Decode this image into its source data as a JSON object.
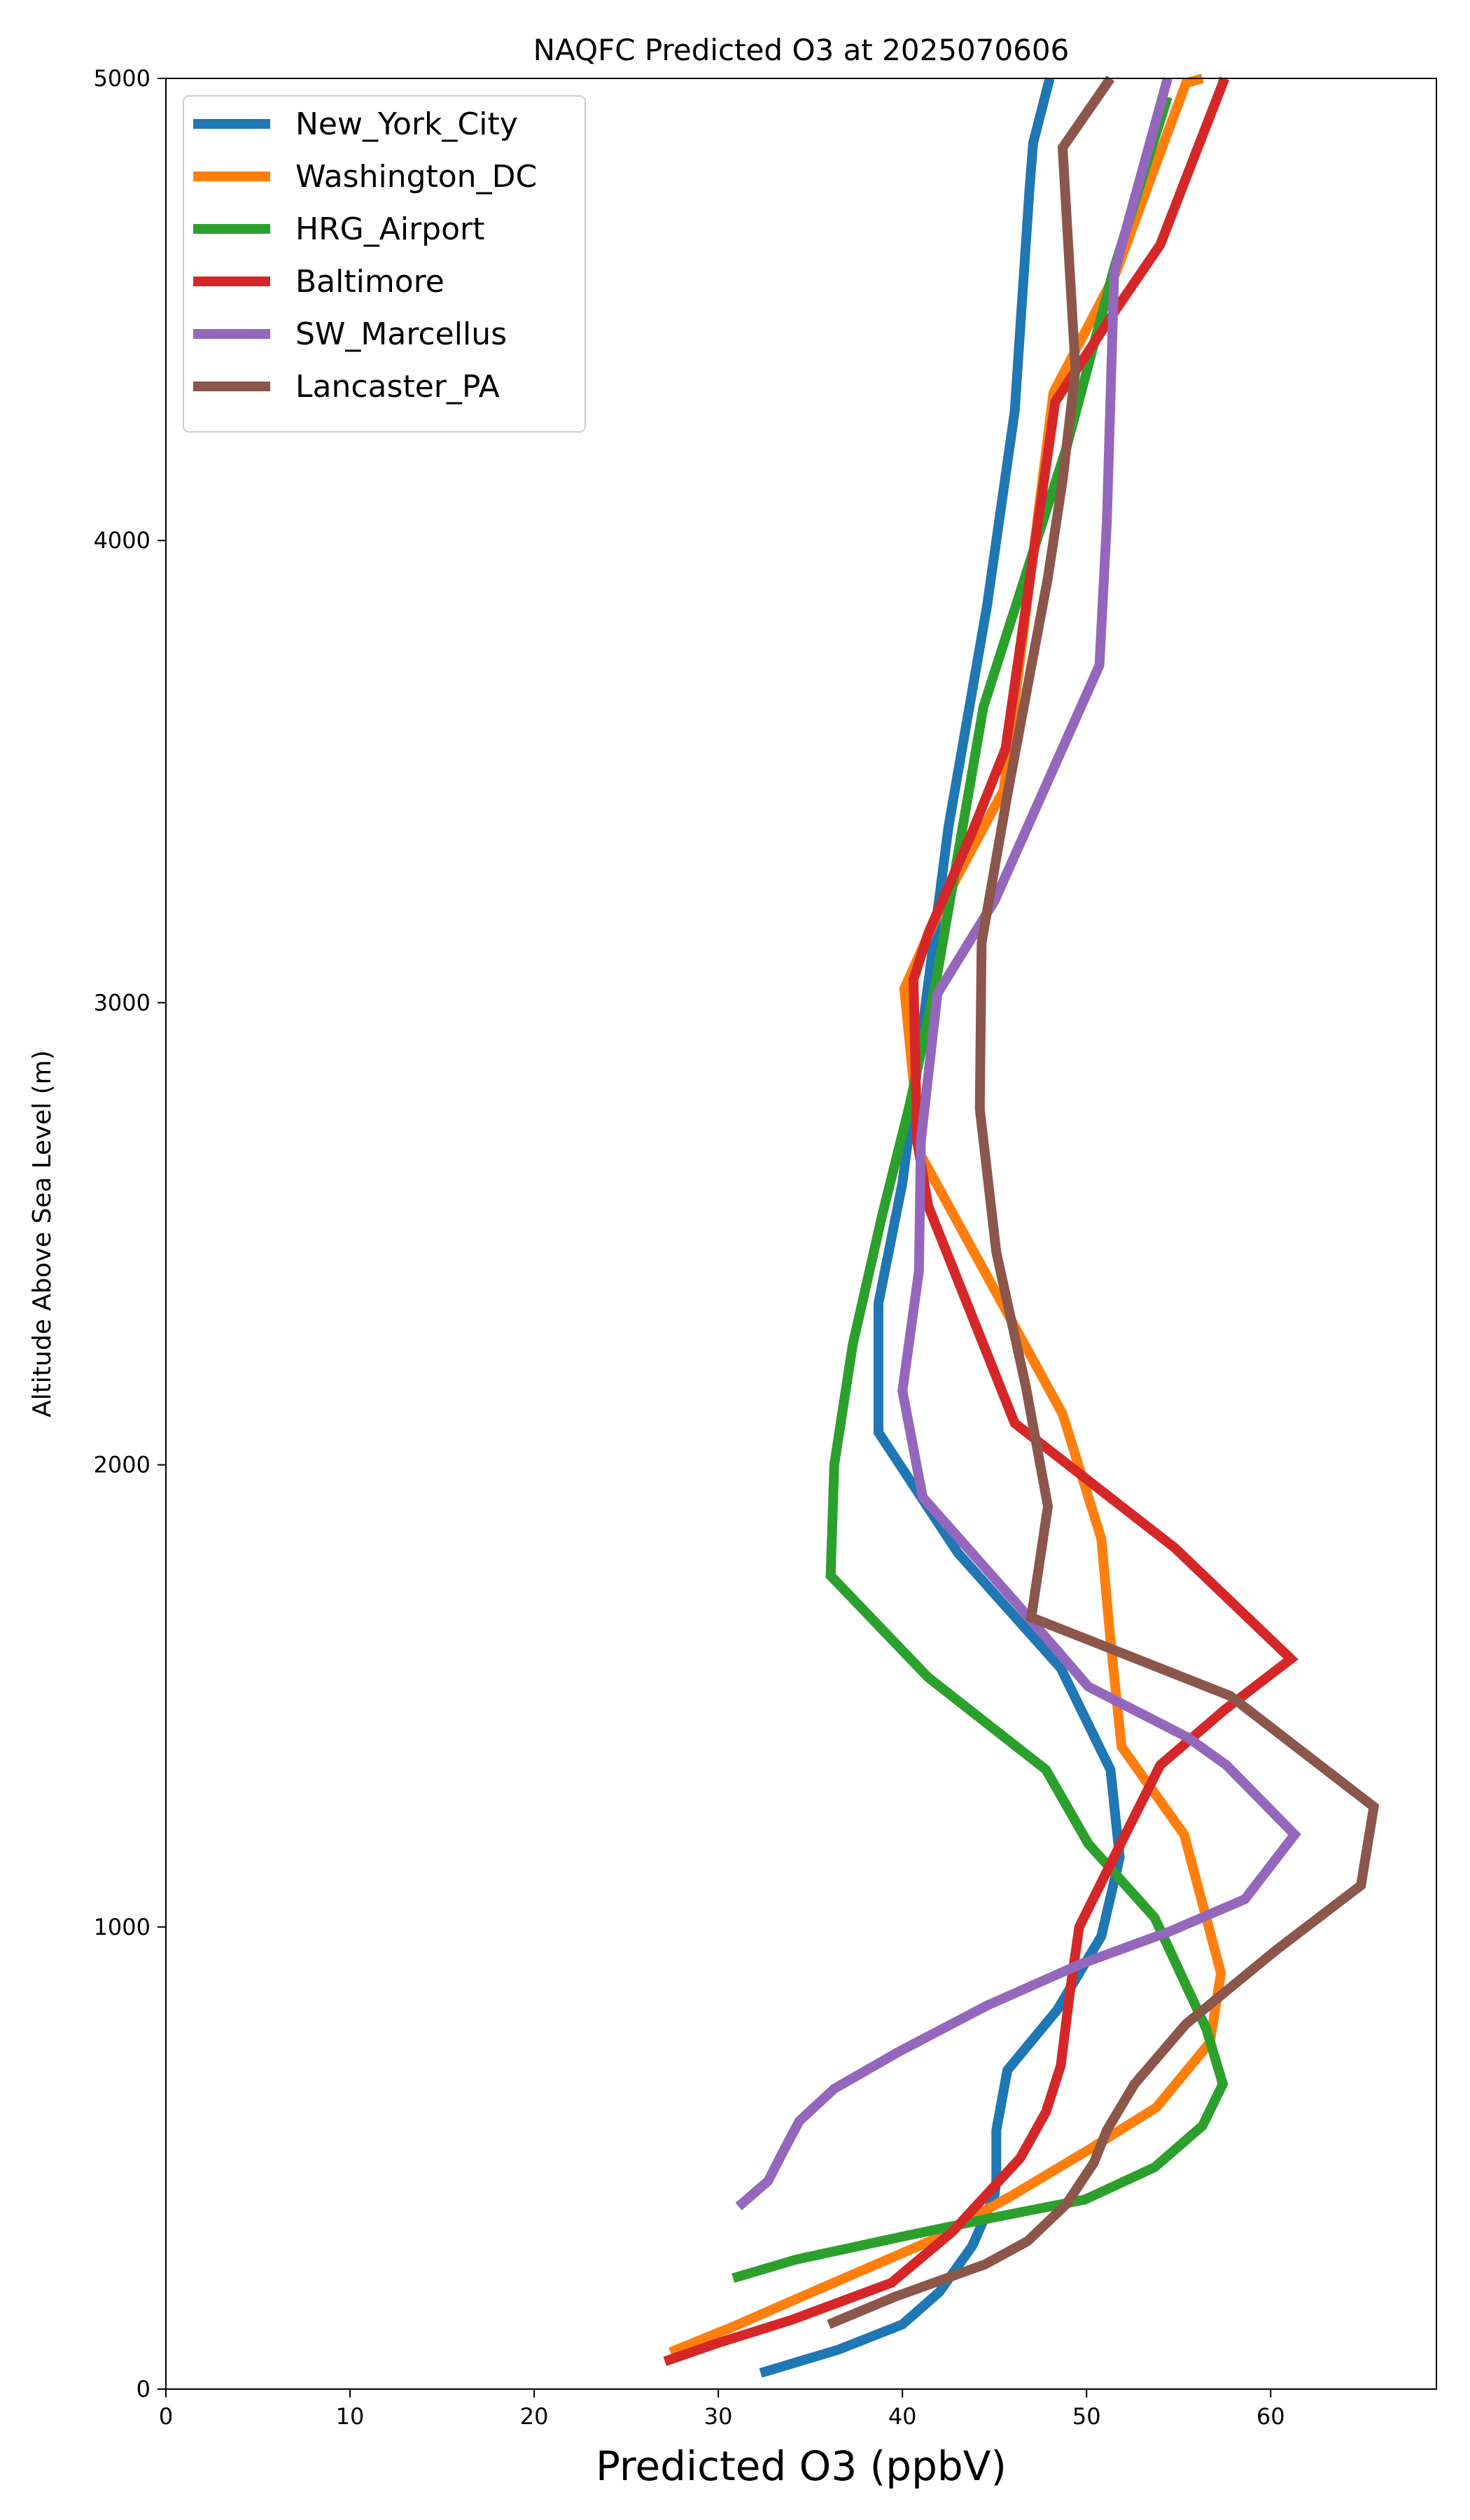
{
  "chart_data": {
    "type": "line",
    "title": "NAQFC Predicted O3 at 2025070606",
    "xlabel": "Predicted O3 (ppbV)",
    "ylabel": "Altitude Above Sea Level (m)",
    "xlim": [
      0,
      69
    ],
    "ylim": [
      0,
      5000
    ],
    "xticks": [
      0,
      10,
      20,
      30,
      40,
      50,
      60
    ],
    "yticks": [
      0,
      1000,
      2000,
      3000,
      4000,
      5000
    ],
    "grid": false,
    "legend": "top-left",
    "series": [
      {
        "name": "New_York_City",
        "color": "#1f77b4",
        "x": [
          32.3,
          36.5,
          40.0,
          42.0,
          43.8,
          45.0,
          45.1,
          45.1,
          45.7,
          48.4,
          50.8,
          51.8,
          51.3,
          48.6,
          43.0,
          38.7,
          38.7,
          40.0,
          42.5,
          44.6,
          46.1,
          46.9,
          47.1,
          48.0
        ],
        "y": [
          35,
          85,
          140,
          210,
          310,
          420,
          450,
          560,
          690,
          820,
          980,
          1150,
          1340,
          1560,
          1810,
          2070,
          2350,
          2610,
          3380,
          3860,
          4280,
          4760,
          4860,
          5000
        ]
      },
      {
        "name": "Washington_DC",
        "color": "#ff7f0e",
        "x": [
          27.4,
          30.8,
          35.1,
          38.0,
          41.5,
          46.0,
          50.2,
          53.8,
          56.7,
          57.3,
          55.3,
          51.9,
          51.3,
          50.8,
          48.7,
          41.0,
          40.1,
          42.0,
          45.5,
          48.2,
          51.6,
          55.4,
          56.3
        ],
        "y": [
          80,
          135,
          210,
          260,
          320,
          420,
          520,
          610,
          750,
          900,
          1200,
          1390,
          1620,
          1840,
          2110,
          2670,
          3030,
          3200,
          3460,
          4320,
          4580,
          4990,
          5000
        ]
      },
      {
        "name": "HRG_Airport",
        "color": "#2ca02c",
        "x": [
          30.8,
          34.2,
          40.0,
          44.8,
          49.9,
          53.7,
          56.3,
          57.4,
          56.5,
          53.7,
          50.1,
          47.8,
          41.4,
          36.1,
          36.3,
          37.3,
          38.9,
          40.4,
          41.8,
          44.4,
          48.9,
          51.5,
          54.4
        ],
        "y": [
          240,
          280,
          330,
          370,
          410,
          480,
          570,
          660,
          780,
          1020,
          1180,
          1340,
          1540,
          1760,
          2000,
          2260,
          2540,
          2780,
          3040,
          3640,
          4200,
          4590,
          4960
        ]
      },
      {
        "name": "Baltimore",
        "color": "#d62728",
        "x": [
          27.1,
          30.0,
          34.0,
          39.4,
          42.7,
          46.4,
          47.8,
          48.6,
          49.1,
          49.6,
          51.6,
          54.0,
          57.5,
          61.1,
          54.8,
          46.1,
          41.4,
          40.8,
          40.6,
          41.4,
          43.8,
          45.6,
          48.3,
          51.6,
          54.0,
          57.5
        ],
        "y": [
          60,
          100,
          150,
          230,
          340,
          500,
          600,
          700,
          860,
          1000,
          1160,
          1350,
          1470,
          1580,
          1820,
          2090,
          2560,
          2700,
          3050,
          3150,
          3370,
          3550,
          4300,
          4500,
          4640,
          5000
        ]
      },
      {
        "name": "SW_Marcellus",
        "color": "#9467bd",
        "x": [
          31.1,
          32.7,
          33.6,
          34.4,
          36.3,
          39.8,
          44.6,
          49.7,
          54.5,
          58.6,
          61.3,
          57.6,
          55.5,
          50.1,
          46.2,
          41.1,
          40.0,
          40.9,
          41.0,
          41.9,
          45.0,
          50.7,
          51.1,
          51.5,
          54.4
        ],
        "y": [
          395,
          450,
          520,
          580,
          650,
          730,
          830,
          920,
          990,
          1060,
          1200,
          1350,
          1410,
          1520,
          1700,
          1930,
          2160,
          2420,
          2700,
          3020,
          3220,
          3730,
          4040,
          4580,
          5000
        ]
      },
      {
        "name": "Lancaster_PA",
        "color": "#8c564b",
        "x": [
          36.0,
          39.6,
          44.5,
          46.8,
          48.9,
          50.4,
          51.1,
          52.6,
          55.4,
          60.3,
          64.9,
          65.6,
          57.8,
          47.0,
          47.9,
          46.7,
          45.1,
          44.2,
          44.3,
          45.7,
          47.9,
          48.7,
          49.4,
          48.7,
          51.3
        ],
        "y": [
          140,
          200,
          270,
          320,
          400,
          490,
          560,
          660,
          790,
          950,
          1090,
          1260,
          1500,
          1670,
          1910,
          2170,
          2460,
          2770,
          3130,
          3450,
          3920,
          4130,
          4370,
          4850,
          5000
        ]
      }
    ]
  }
}
